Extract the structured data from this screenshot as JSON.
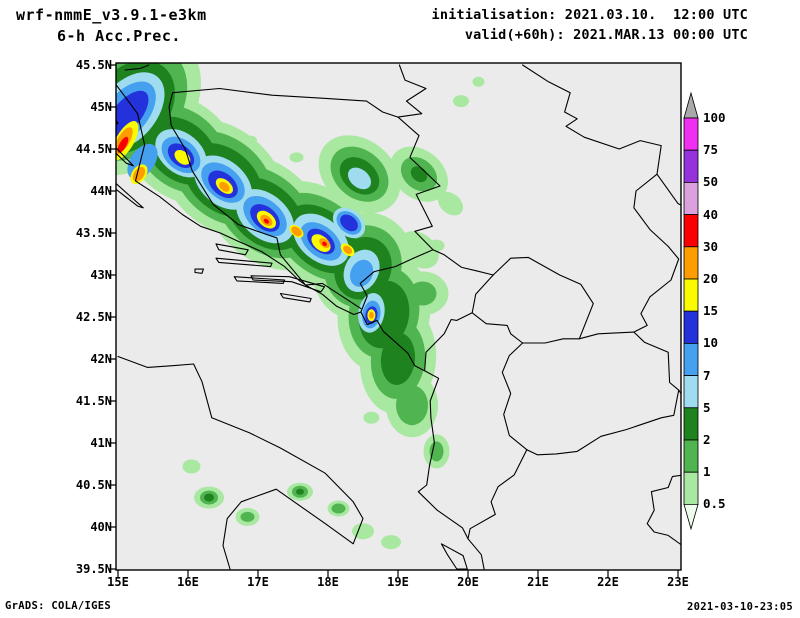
{
  "header": {
    "model": "wrf-nmmE_v3.9.1-e3km",
    "field": "6-h Acc.Prec.",
    "init_label": "initialisation: 2021.03.10.  12:00 UTC",
    "valid_label": "valid(+60h): 2021.MAR.13 00:00 UTC"
  },
  "axes": {
    "y_ticks": [
      "45.5N",
      "45N",
      "44.5N",
      "44N",
      "43.5N",
      "43N",
      "42.5N",
      "42N",
      "41.5N",
      "41N",
      "40.5N",
      "40N",
      "39.5N"
    ],
    "x_ticks": [
      "15E",
      "16E",
      "17E",
      "18E",
      "19E",
      "20E",
      "21E",
      "22E",
      "23E"
    ]
  },
  "colorbar": {
    "labels": [
      "100",
      "75",
      "50",
      "40",
      "30",
      "20",
      "15",
      "10",
      "7",
      "5",
      "2",
      "1",
      "0.5"
    ],
    "segment_colors": [
      "#f030f0",
      "#9632dc",
      "#dca0dc",
      "#fa0000",
      "#ff9c00",
      "#fafa00",
      "#2432dc",
      "#46a0f0",
      "#a0dcf0",
      "#1e821e",
      "#50b450",
      "#a8e8a0"
    ],
    "top_arrow_color": "#a9a9a9",
    "bottom_arrow_color": "#eefcee"
  },
  "map_colors": {
    "background": "#ebebeb",
    "border_lines": "#000000"
  },
  "footer": {
    "credit": "GrADS: COLA/IGES",
    "timestamp": "2021-03-10-23:05"
  }
}
